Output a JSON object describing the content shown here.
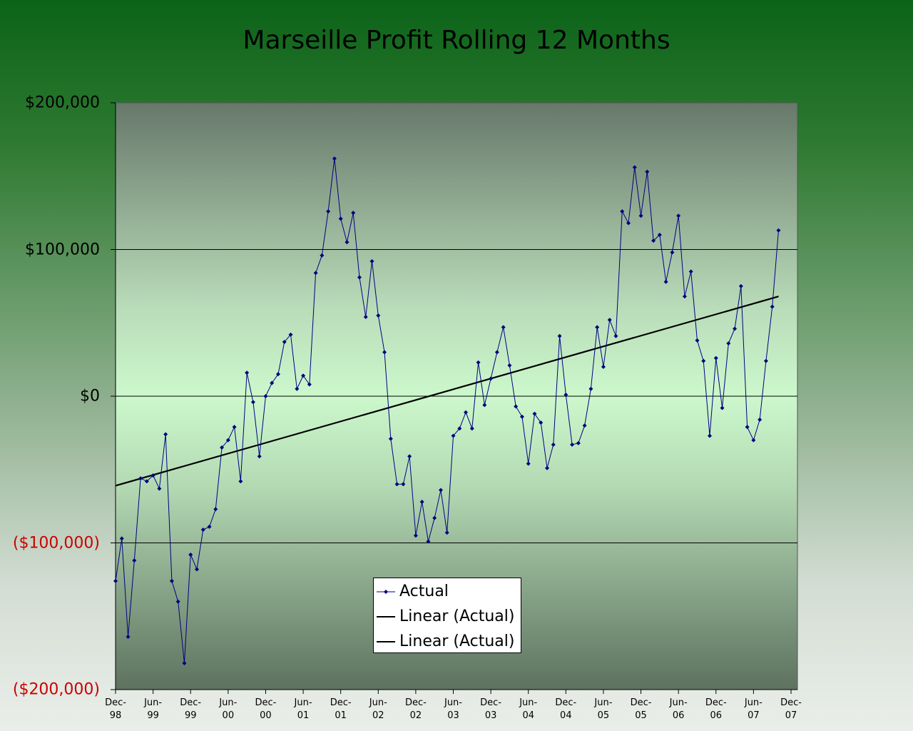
{
  "chart_data": {
    "type": "line",
    "title": "Marseille Profit Rolling 12 Months",
    "categories": [
      "Dec-98",
      null,
      null,
      null,
      null,
      null,
      "Jun-99",
      null,
      null,
      null,
      null,
      null,
      "Dec-99",
      null,
      null,
      null,
      null,
      null,
      "Jun-00",
      null,
      null,
      null,
      null,
      null,
      "Dec-00",
      null,
      null,
      null,
      null,
      null,
      "Jun-01",
      null,
      null,
      null,
      null,
      null,
      "Dec-01",
      null,
      null,
      null,
      null,
      null,
      "Jun-02",
      null,
      null,
      null,
      null,
      null,
      "Dec-02",
      null,
      null,
      null,
      null,
      null,
      "Jun-03",
      null,
      null,
      null,
      null,
      null,
      "Dec-03",
      null,
      null,
      null,
      null,
      null,
      "Jun-04",
      null,
      null,
      null,
      null,
      null,
      "Dec-04",
      null,
      null,
      null,
      null,
      null,
      "Jun-05",
      null,
      null,
      null,
      null,
      null,
      "Dec-05",
      null,
      null,
      null,
      null,
      null,
      "Jun-06",
      null,
      null,
      null,
      null,
      null,
      "Dec-06",
      null,
      null,
      null,
      null,
      null,
      "Jun-07",
      null,
      null,
      null,
      null,
      null,
      "Dec-07"
    ],
    "series": [
      {
        "name": "Actual",
        "color": "#000080",
        "values": [
          -126000,
          -97000,
          -164000,
          -112000,
          -56000,
          -58000,
          -54000,
          -63000,
          -26000,
          -126000,
          -140000,
          -182000,
          -108000,
          -118000,
          -91000,
          -89000,
          -77000,
          -35000,
          -30000,
          -21000,
          -58000,
          16000,
          -4000,
          -41000,
          0,
          9000,
          15000,
          37000,
          42000,
          5000,
          14000,
          8000,
          84000,
          96000,
          126000,
          162000,
          121000,
          105000,
          125000,
          81000,
          54000,
          92000,
          55000,
          30000,
          -29000,
          -60000,
          -60000,
          -41000,
          -95000,
          -72000,
          -99000,
          -83000,
          -64000,
          -93000,
          -27000,
          -22000,
          -11000,
          -22000,
          23000,
          -6000,
          12000,
          30000,
          47000,
          21000,
          -7000,
          -14000,
          -46000,
          -12000,
          -18000,
          -49000,
          -33000,
          41000,
          1000,
          -33000,
          -32000,
          -20000,
          5000,
          47000,
          20000,
          52000,
          41000,
          126000,
          118000,
          156000,
          123000,
          153000,
          106000,
          110000,
          78000,
          98000,
          123000,
          68000,
          85000,
          38000,
          24000,
          -27000,
          26000,
          -8000,
          36000,
          46000,
          75000,
          -21000,
          -30000,
          -16000,
          24000,
          61000,
          113000,
          null,
          null
        ]
      }
    ],
    "trendlines": [
      {
        "name": "Linear (Actual)",
        "color": "#000000",
        "values": [
          -61000,
          68000
        ]
      },
      {
        "name": "Linear (Actual)",
        "color": "#000000",
        "values": [
          -61000,
          68000
        ]
      }
    ],
    "ylim": [
      -200000,
      200000
    ],
    "yticks": [
      {
        "value": -200000,
        "label": "($200,000)"
      },
      {
        "value": -100000,
        "label": "($100,000)"
      },
      {
        "value": 0,
        "label": "$0"
      },
      {
        "value": 100000,
        "label": "$100,000"
      },
      {
        "value": 200000,
        "label": "$200,000"
      }
    ],
    "negative_tick_color": "#cc0000",
    "grid": true
  }
}
